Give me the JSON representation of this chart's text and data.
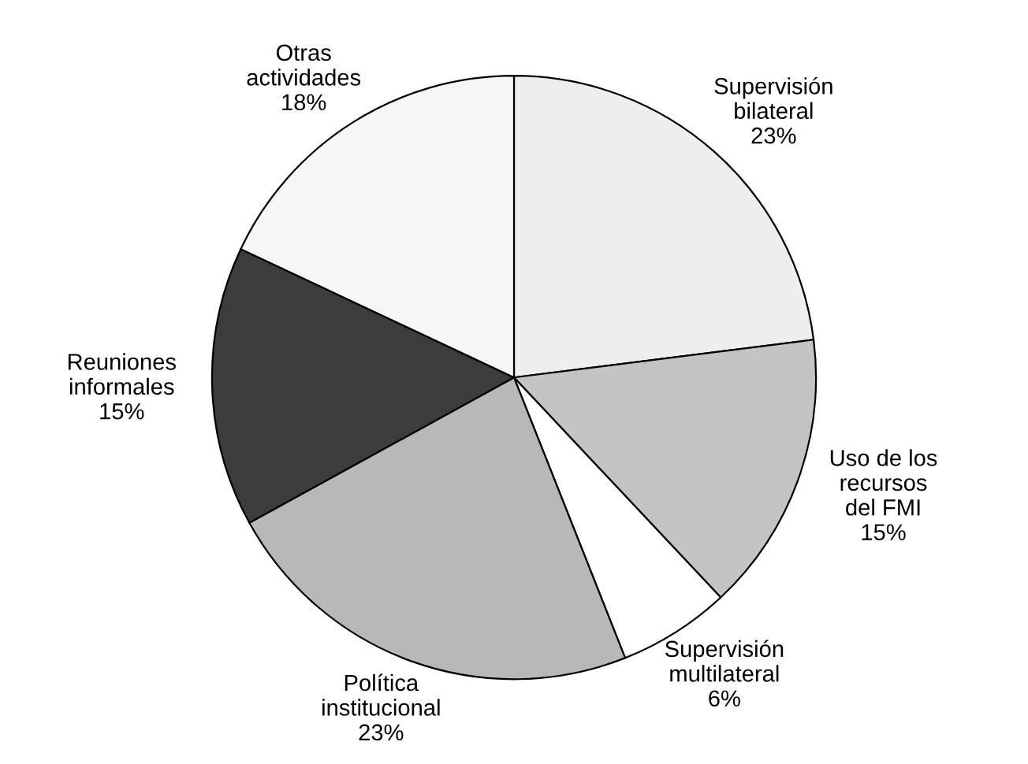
{
  "chart_data": {
    "type": "pie",
    "categories": [
      "Supervisión\nbilateral",
      "Uso de los\nrecursos\ndel FMI",
      "Supervisión\nmultilateral",
      "Política\ninstitucional",
      "Reuniones\ninformales",
      "Otras\nactividades"
    ],
    "values": [
      23,
      15,
      6,
      23,
      15,
      18
    ],
    "value_labels": [
      "23%",
      "15%",
      "6%",
      "23%",
      "15%",
      "18%"
    ],
    "colors": [
      "#eeeeee",
      "#c4c4c4",
      "#ffffff",
      "#b8b8b8",
      "#3c3c3c",
      "#f6f6f6"
    ]
  }
}
